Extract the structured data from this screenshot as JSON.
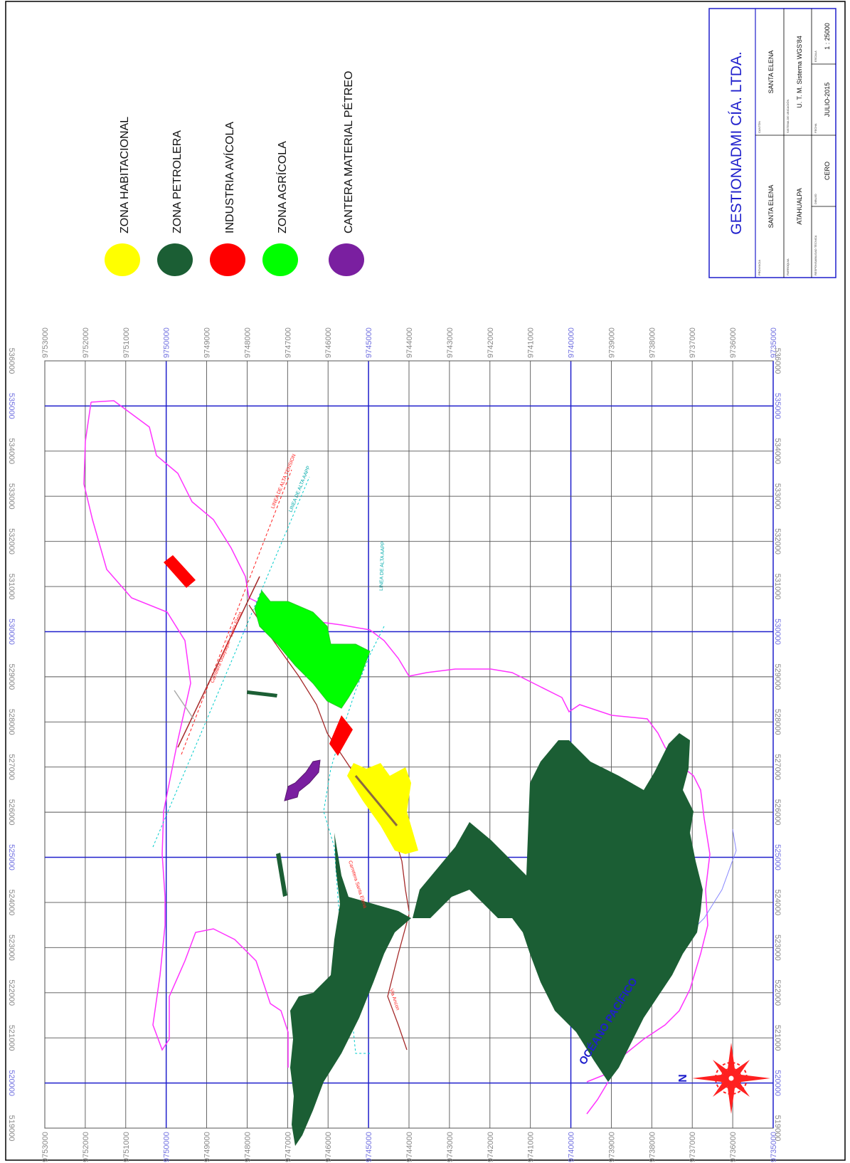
{
  "title_block": {
    "company": "GESTIONADMI CÍA. LTDA.",
    "cells": [
      {
        "label": "PROVINCIA",
        "value": "SANTA ELENA"
      },
      {
        "label": "CANTÓN",
        "value": "SANTA ELENA"
      },
      {
        "label": "PARROQUIA",
        "value": "ATAHUALPA"
      },
      {
        "label": "SISTEMA DE UBICACIÓN",
        "value": "U. T. M. Sistema WGS'84"
      },
      {
        "label": "RESPONSABILIDAD TÉCNICA",
        "value": ""
      },
      {
        "label": "DIBUJO",
        "value": "CERO"
      },
      {
        "label": "FECHA",
        "value": "JULIO-2015"
      },
      {
        "label": "ESCALA",
        "value": "1 : 25000"
      }
    ]
  },
  "legend": [
    {
      "label": "ZONA HABITACIONAL",
      "color": "#ffff00"
    },
    {
      "label": "ZONA PETROLERA",
      "color": "#1b5e34"
    },
    {
      "label": "INDUSTRIA AVÍCOLA",
      "color": "#ff0000"
    },
    {
      "label": "ZONA AGRÍCOLA",
      "color": "#00ff00"
    },
    {
      "label": "CANTERA MATERIAL PÉTREO",
      "color": "#7a1fa0"
    }
  ],
  "grid": {
    "northings": [
      "9753000",
      "9752000",
      "9751000",
      "9750000",
      "9749000",
      "9748000",
      "9747000",
      "9746000",
      "9745000",
      "9744000",
      "9743000",
      "9742000",
      "9741000",
      "9740000",
      "9739000",
      "9738000",
      "9737000",
      "9736000",
      "9735000"
    ],
    "eastings": [
      "536000",
      "535000",
      "534000",
      "533000",
      "532000",
      "531000",
      "530000",
      "529000",
      "528000",
      "527000",
      "526000",
      "525000",
      "524000",
      "523000",
      "522000",
      "521000",
      "520000",
      "519000"
    ]
  },
  "labels": {
    "ocean": "OCÉANO PACÍFICO",
    "north": "N",
    "line1": "LINEA DE ALTA TENSION",
    "line2": "LINEA DE ALTA AAPP",
    "line3": "LINEA DE ALTA AAPP",
    "road1": "Carretera Santa Elena",
    "road2": "Via Ancon",
    "road3": "Carretera Guayaquil - Santa Elena"
  },
  "colors": {
    "boundary": "#ff33ff",
    "grid_major": "#1f1fcc",
    "grid_minor": "#555555",
    "road": "#a52a2a"
  }
}
